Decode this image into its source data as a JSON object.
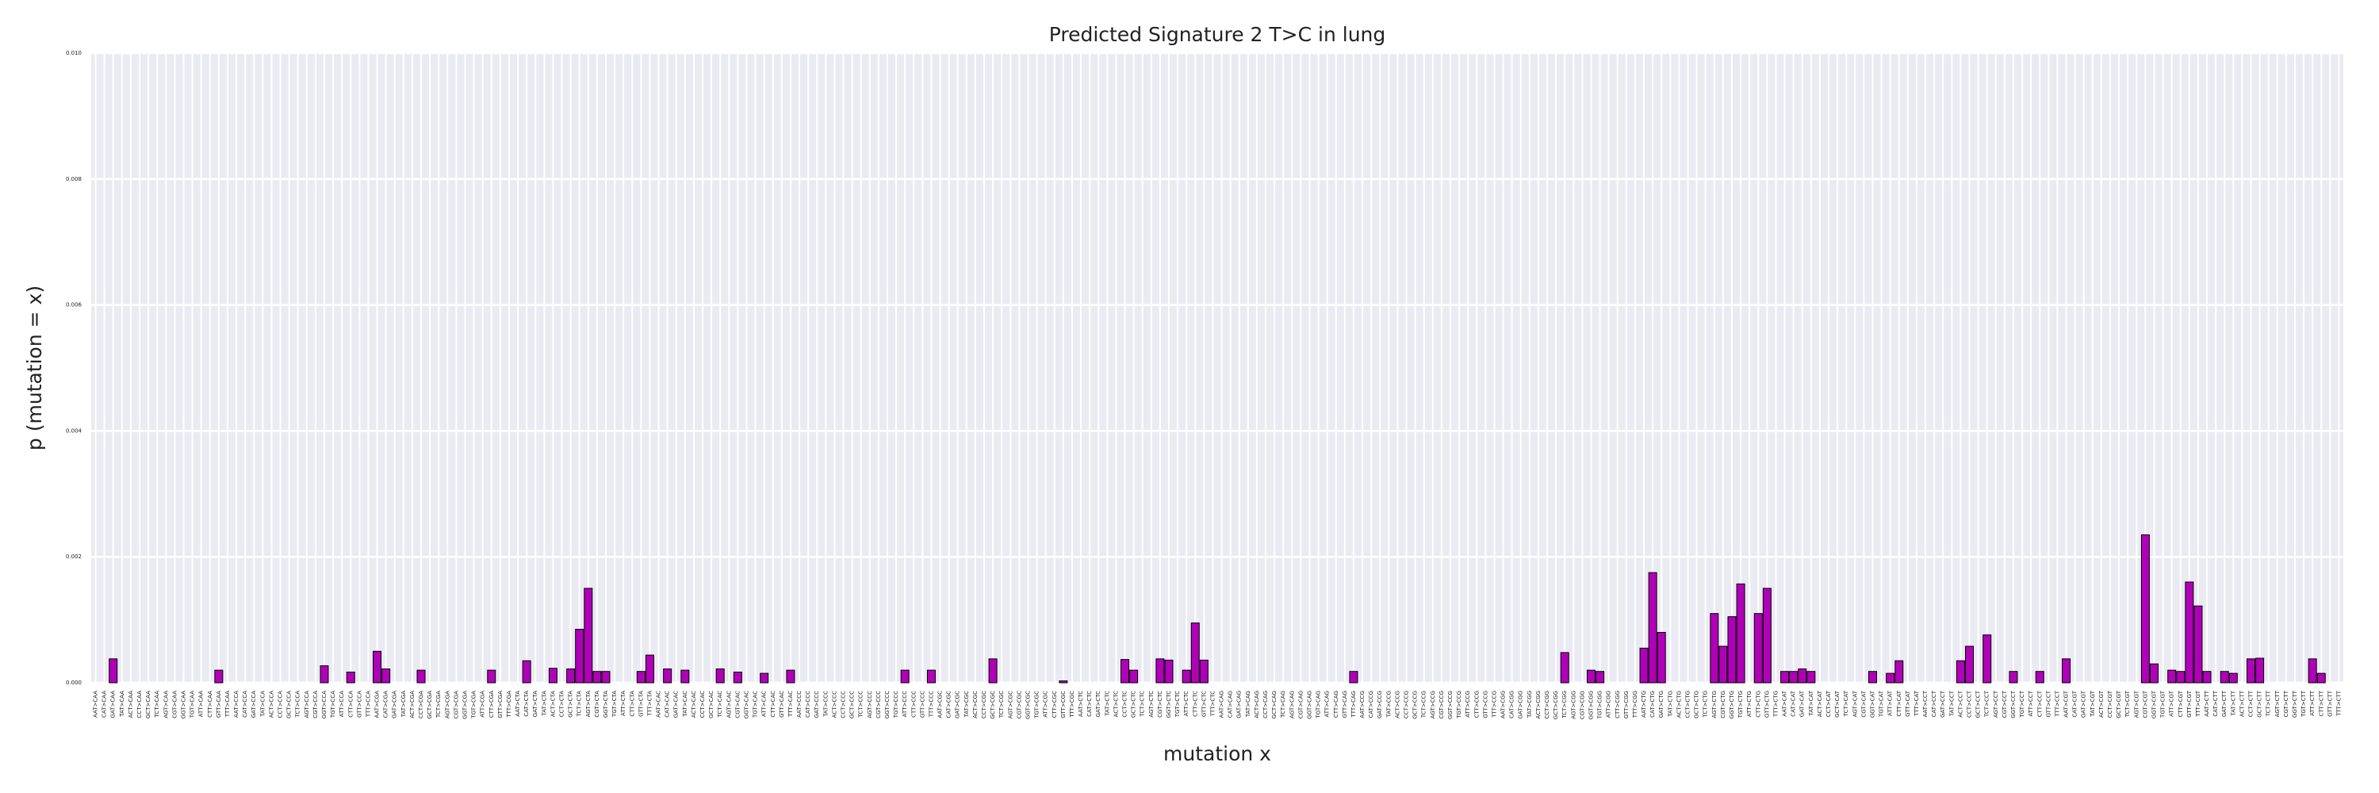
{
  "chart_data": {
    "type": "bar",
    "title": "Predicted Signature 2 T>C in lung",
    "xlabel": "mutation x",
    "ylabel": "p (mutation = x)",
    "color": "#b000b8",
    "edgecolor": "#000000",
    "grid": true,
    "ylim": [
      0,
      0.01
    ],
    "yticks": [
      {
        "value": 0,
        "label": "0.000"
      },
      0.002,
      0.004,
      0.006,
      0.008,
      {
        "value": 0.01,
        "label": "0.010"
      }
    ],
    "categories": [
      "AAT>CAA",
      "CAT>CAA",
      "GAT>CAA",
      "TAT>CAA",
      "ACT>CAA",
      "CCT>CAA",
      "GCT>CAA",
      "TCT>CAA",
      "AGT>CAA",
      "CGT>CAA",
      "GGT>CAA",
      "TGT>CAA",
      "ATT>CAA",
      "CTT>CAA",
      "GTT>CAA",
      "TTT>CAA",
      "AAT>CCA",
      "CAT>CCA",
      "GAT>CCA",
      "TAT>CCA",
      "ACT>CCA",
      "CCT>CCA",
      "GCT>CCA",
      "TCT>CCA",
      "AGT>CCA",
      "CGT>CCA",
      "GGT>CCA",
      "TGT>CCA",
      "ATT>CCA",
      "CTT>CCA",
      "GTT>CCA",
      "TTT>CCA",
      "AAT>CGA",
      "CAT>CGA",
      "GAT>CGA",
      "TAT>CGA",
      "ACT>CGA",
      "CCT>CGA",
      "GCT>CGA",
      "TCT>CGA",
      "AGT>CGA",
      "CGT>CGA",
      "GGT>CGA",
      "TGT>CGA",
      "ATT>CGA",
      "CTT>CGA",
      "GTT>CGA",
      "TTT>CGA",
      "AAT>CTA",
      "CAT>CTA",
      "GAT>CTA",
      "TAT>CTA",
      "ACT>CTA",
      "CCT>CTA",
      "GCT>CTA",
      "TCT>CTA",
      "AGT>CTA",
      "CGT>CTA",
      "GGT>CTA",
      "TGT>CTA",
      "ATT>CTA",
      "CTT>CTA",
      "GTT>CTA",
      "TTT>CTA",
      "AAT>CAC",
      "CAT>CAC",
      "GAT>CAC",
      "TAT>CAC",
      "ACT>CAC",
      "CCT>CAC",
      "GCT>CAC",
      "TCT>CAC",
      "AGT>CAC",
      "CGT>CAC",
      "GGT>CAC",
      "TGT>CAC",
      "ATT>CAC",
      "CTT>CAC",
      "GTT>CAC",
      "TTT>CAC",
      "AAT>CCC",
      "CAT>CCC",
      "GAT>CCC",
      "TAT>CCC",
      "ACT>CCC",
      "CCT>CCC",
      "GCT>CCC",
      "TCT>CCC",
      "AGT>CCC",
      "CGT>CCC",
      "GGT>CCC",
      "TGT>CCC",
      "ATT>CCC",
      "CTT>CCC",
      "GTT>CCC",
      "TTT>CCC",
      "AAT>CGC",
      "CAT>CGC",
      "GAT>CGC",
      "TAT>CGC",
      "ACT>CGC",
      "CCT>CGC",
      "GCT>CGC",
      "TCT>CGC",
      "AGT>CGC",
      "CGT>CGC",
      "GGT>CGC",
      "TGT>CGC",
      "ATT>CGC",
      "CTT>CGC",
      "GTT>CGC",
      "TTT>CGC",
      "AAT>CTC",
      "CAT>CTC",
      "GAT>CTC",
      "TAT>CTC",
      "ACT>CTC",
      "CCT>CTC",
      "GCT>CTC",
      "TCT>CTC",
      "AGT>CTC",
      "CGT>CTC",
      "GGT>CTC",
      "TGT>CTC",
      "ATT>CTC",
      "CTT>CTC",
      "GTT>CTC",
      "TTT>CTC",
      "AAT>CAG",
      "CAT>CAG",
      "GAT>CAG",
      "TAT>CAG",
      "ACT>CAG",
      "CCT>CAG",
      "GCT>CAG",
      "TCT>CAG",
      "AGT>CAG",
      "CGT>CAG",
      "GGT>CAG",
      "TGT>CAG",
      "ATT>CAG",
      "CTT>CAG",
      "GTT>CAG",
      "TTT>CAG",
      "AAT>CCG",
      "CAT>CCG",
      "GAT>CCG",
      "TAT>CCG",
      "ACT>CCG",
      "CCT>CCG",
      "GCT>CCG",
      "TCT>CCG",
      "AGT>CCG",
      "CGT>CCG",
      "GGT>CCG",
      "TGT>CCG",
      "ATT>CCG",
      "CTT>CCG",
      "GTT>CCG",
      "TTT>CCG",
      "AAT>CGG",
      "CAT>CGG",
      "GAT>CGG",
      "TAT>CGG",
      "ACT>CGG",
      "CCT>CGG",
      "GCT>CGG",
      "TCT>CGG",
      "AGT>CGG",
      "CGT>CGG",
      "GGT>CGG",
      "TGT>CGG",
      "ATT>CGG",
      "CTT>CGG",
      "GTT>CGG",
      "TTT>CGG",
      "AAT>CTG",
      "CAT>CTG",
      "GAT>CTG",
      "TAT>CTG",
      "ACT>CTG",
      "CCT>CTG",
      "GCT>CTG",
      "TCT>CTG",
      "AGT>CTG",
      "CGT>CTG",
      "GGT>CTG",
      "TGT>CTG",
      "ATT>CTG",
      "CTT>CTG",
      "GTT>CTG",
      "TTT>CTG",
      "AAT>CAT",
      "CAT>CAT",
      "GAT>CAT",
      "TAT>CAT",
      "ACT>CAT",
      "CCT>CAT",
      "GCT>CAT",
      "TCT>CAT",
      "AGT>CAT",
      "CGT>CAT",
      "GGT>CAT",
      "TGT>CAT",
      "ATT>CAT",
      "CTT>CAT",
      "GTT>CAT",
      "TTT>CAT",
      "AAT>CCT",
      "CAT>CCT",
      "GAT>CCT",
      "TAT>CCT",
      "ACT>CCT",
      "CCT>CCT",
      "GCT>CCT",
      "TCT>CCT",
      "AGT>CCT",
      "CGT>CCT",
      "GGT>CCT",
      "TGT>CCT",
      "ATT>CCT",
      "CTT>CCT",
      "GTT>CCT",
      "TTT>CCT",
      "AAT>CGT",
      "CAT>CGT",
      "GAT>CGT",
      "TAT>CGT",
      "ACT>CGT",
      "CCT>CGT",
      "GCT>CGT",
      "TCT>CGT",
      "AGT>CGT",
      "CGT>CGT",
      "GGT>CGT",
      "TGT>CGT",
      "ATT>CGT",
      "CTT>CGT",
      "GTT>CGT",
      "TTT>CGT",
      "AAT>CTT",
      "CAT>CTT",
      "GAT>CTT",
      "TAT>CTT",
      "ACT>CTT",
      "CCT>CTT",
      "GCT>CTT",
      "TCT>CTT",
      "AGT>CTT",
      "CGT>CTT",
      "GGT>CTT",
      "TGT>CTT",
      "ATT>CTT",
      "CTT>CTT",
      "GTT>CTT",
      "TTT>CTT"
    ],
    "values": [
      0,
      0,
      0.00038,
      0,
      0,
      0,
      0,
      0,
      0,
      0,
      0,
      0,
      0,
      0,
      0.0002,
      0,
      0,
      0,
      0,
      0,
      0,
      0,
      0,
      0,
      0,
      0,
      0.00027,
      0,
      0,
      0.00017,
      0,
      0,
      0.0005,
      0.00022,
      0,
      0,
      0,
      0.0002,
      0,
      0,
      0,
      0,
      0,
      0,
      0,
      0.0002,
      0,
      0,
      0,
      0.00035,
      0,
      0,
      0.00023,
      0,
      0.00022,
      0.00085,
      0.0015,
      0.00018,
      0.00018,
      0,
      0,
      0,
      0.00018,
      0.00044,
      0,
      0.00022,
      0,
      0.0002,
      0,
      0,
      0,
      0.00022,
      0,
      0.00017,
      0,
      0,
      0.00015,
      0,
      0,
      0.0002,
      0,
      0,
      0,
      0,
      0,
      0,
      0,
      0,
      0,
      0,
      0,
      0,
      0.0002,
      0,
      0,
      0.0002,
      0,
      0,
      0,
      0,
      0,
      0,
      0.00038,
      0,
      0,
      0,
      0,
      0,
      0,
      0,
      3e-05,
      0,
      0,
      0,
      0,
      0,
      0,
      0.00037,
      0.0002,
      0,
      0,
      0.00038,
      0.00036,
      0,
      0.0002,
      0.00095,
      0.00036,
      0,
      0,
      0,
      0,
      0,
      0,
      0,
      0,
      0,
      0,
      0,
      0,
      0,
      0,
      0,
      0,
      0.00018,
      0,
      0,
      0,
      0,
      0,
      0,
      0,
      0,
      0,
      0,
      0,
      0,
      0,
      0,
      0,
      0,
      0,
      0,
      0,
      0,
      0,
      0,
      0,
      0.00048,
      0,
      0,
      0.0002,
      0.00018,
      0,
      0,
      0,
      0,
      0.00055,
      0.00175,
      0.0008,
      0,
      0,
      0,
      0,
      0,
      0.0011,
      0.00058,
      0.00105,
      0.00157,
      0,
      0.0011,
      0.0015,
      0,
      0.00018,
      0.00018,
      0.00022,
      0.00018,
      0,
      0,
      0,
      0,
      0,
      0,
      0.00018,
      0,
      0.00015,
      0.00035,
      0,
      0,
      0,
      0,
      0,
      0,
      0.00035,
      0.00058,
      0,
      0.00076,
      0,
      0,
      0.00018,
      0,
      0,
      0.00018,
      0,
      0,
      0.00038,
      0,
      0,
      0,
      0,
      0,
      0,
      0,
      0,
      0.00235,
      0.0003,
      0,
      0.0002,
      0.00018,
      0.0016,
      0.00122,
      0.00018,
      0,
      0.00018,
      0.00015,
      0,
      0.00038,
      0.00039,
      0,
      0,
      0,
      0,
      0,
      0.00038,
      0.00015,
      0,
      0
    ]
  }
}
